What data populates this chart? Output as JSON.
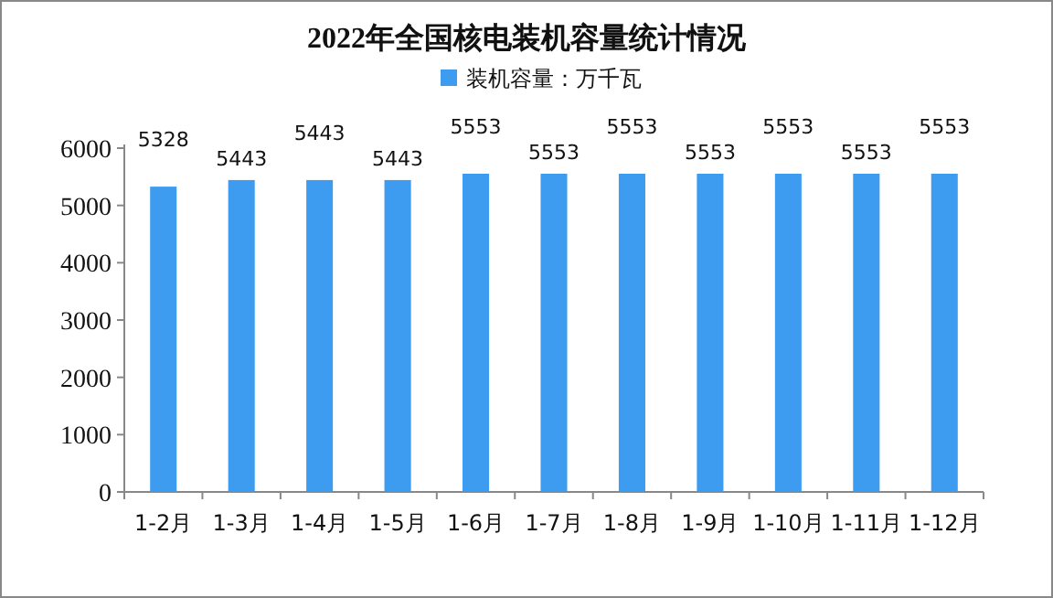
{
  "chart_data": {
    "type": "bar",
    "title": "2022年全国核电装机容量统计情况",
    "categories": [
      "1-2月",
      "1-3月",
      "1-4月",
      "1-5月",
      "1-6月",
      "1-7月",
      "1-8月",
      "1-9月",
      "1-10月",
      "1-11月",
      "1-12月"
    ],
    "series": [
      {
        "name": "装机容量：万千瓦",
        "color": "#3d9cf0",
        "values": [
          5328,
          5443,
          5443,
          5443,
          5553,
          5553,
          5553,
          5553,
          5553,
          5553,
          5553
        ]
      }
    ],
    "ylim": [
      0,
      6000
    ],
    "yticks": [
      0,
      1000,
      2000,
      3000,
      4000,
      5000,
      6000
    ],
    "data_labels": true,
    "legend": "top",
    "grid": false
  }
}
